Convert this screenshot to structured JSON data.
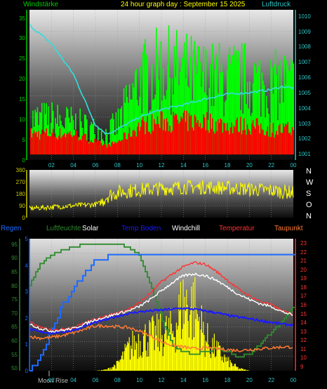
{
  "header": {
    "left_label": "Windstärke",
    "title": "24 hour graph day : September 15 2025",
    "right_label": "Luftdruck"
  },
  "wind_panel": {
    "left_axis_ticks": [
      "35",
      "30",
      "25",
      "20",
      "15",
      "10",
      "5",
      "0"
    ],
    "right_axis_ticks": [
      "1010",
      "1009",
      "1008",
      "1007",
      "1006",
      "1005",
      "1004",
      "1003",
      "1002",
      "1001"
    ],
    "x_ticks": [
      "02",
      "04",
      "06",
      "08",
      "10",
      "12",
      "14",
      "16",
      "18",
      "20",
      "22",
      "00"
    ]
  },
  "direction_panel": {
    "left_axis_ticks": [
      "360",
      "270",
      "180",
      "90",
      "0"
    ],
    "compass_labels": [
      "N",
      "W",
      "S",
      "O",
      "N"
    ]
  },
  "lower_header": {
    "regen": "Regen",
    "luftfeuchte": "Luftfeuchte",
    "solar": "Solar",
    "temp_boden": "Temp Boden",
    "windchill": "Windchill",
    "temperatur": "Temperatur",
    "taupunkt": "Taupunkt"
  },
  "lower_panel": {
    "rain_axis_ticks": [
      "5",
      "4",
      "3",
      "2",
      "1",
      "0"
    ],
    "humidity_axis_ticks": [
      "95",
      "90",
      "85",
      "80",
      "75",
      "70",
      "65",
      "60",
      "55",
      "50"
    ],
    "temp_axis_ticks": [
      "23",
      "22",
      "21",
      "20",
      "19",
      "18",
      "17",
      "16",
      "15",
      "14",
      "13",
      "12",
      "11",
      "10",
      "9"
    ],
    "x_ticks": [
      "02",
      "04",
      "06",
      "08",
      "10",
      "12",
      "14",
      "16",
      "18",
      "20",
      "22",
      "00"
    ],
    "moon_label": "Moon Rise"
  },
  "colors": {
    "wind_gust": "#00ff00",
    "wind_avg": "#ff0000",
    "pressure": "#33dddd",
    "direction": "#ffff00",
    "rain": "#1e6bff",
    "humidity": "#2e8b2e",
    "solar": "#ffff00",
    "soil_temp": "#1a1aff",
    "windchill": "#ffffff",
    "temperature": "#ff3333",
    "dewpoint": "#ff7a33"
  },
  "chart_data": [
    {
      "type": "line",
      "x": [
        0,
        2,
        4,
        6,
        7,
        8,
        10,
        12,
        14,
        16,
        18,
        20,
        22,
        23,
        24
      ],
      "xlim": [
        0,
        24
      ],
      "ylim": [
        0,
        37
      ],
      "y2lim": [
        1000.6,
        1010.4
      ],
      "series": [
        {
          "name": "Windstärke",
          "axis": "left",
          "values": [
            11,
            11,
            10,
            8,
            7,
            10,
            22,
            25,
            24,
            22,
            22,
            22,
            20,
            21,
            20
          ]
        },
        {
          "axis": "left",
          "values": [
            4,
            4,
            4,
            2,
            1,
            2,
            6,
            7,
            7,
            7,
            6,
            6,
            5,
            5,
            5
          ]
        },
        {
          "name": "Luftdruck",
          "axis": "right",
          "values": [
            1009.4,
            1008.2,
            1006.2,
            1002.9,
            1002.3,
            1002.6,
            1003.4,
            1003.9,
            1004.2,
            1004.6,
            1004.9,
            1005.0,
            1005.2,
            1005.4,
            1005.3
          ]
        }
      ]
    },
    {
      "type": "line",
      "x": [
        0,
        2,
        4,
        6,
        6.5,
        7,
        8,
        10,
        12,
        14,
        16,
        18,
        20,
        22,
        24
      ],
      "xlim": [
        0,
        24
      ],
      "ylim": [
        0,
        360
      ],
      "series": [
        {
          "values": [
            70,
            80,
            90,
            100,
            110,
            160,
            190,
            210,
            220,
            230,
            230,
            225,
            215,
            205,
            190
          ]
        }
      ]
    },
    {
      "type": "line",
      "x": [
        0,
        1,
        2,
        3,
        4,
        5,
        6,
        7,
        8,
        9,
        10,
        11,
        12,
        13,
        14,
        15,
        16,
        17,
        18,
        19,
        20,
        21,
        22,
        23,
        24
      ],
      "xlim": [
        0,
        24
      ],
      "series": [
        {
          "name": "Regen",
          "axis": "rain",
          "ylim": [
            0,
            5
          ],
          "values": [
            0,
            0.5,
            1.6,
            2.5,
            3.1,
            3.7,
            4.2,
            4.3,
            4.3,
            4.3,
            4.3,
            4.3,
            4.3,
            4.3,
            4.3,
            4.3,
            4.3,
            4.3,
            4.3,
            4.3,
            4.3,
            4.3,
            4.3,
            4.3,
            4.3
          ]
        },
        {
          "name": "Luftfeuchte",
          "axis": "humidity",
          "ylim": [
            49,
            97
          ],
          "values": [
            80,
            88,
            91,
            93,
            94,
            95,
            95,
            95,
            95,
            94,
            91,
            80,
            68,
            58,
            56,
            55,
            56,
            57,
            56,
            54,
            55,
            59,
            63,
            67,
            72
          ]
        },
        {
          "name": "Temp Boden",
          "axis": "temp",
          "ylim": [
            8.5,
            23.5
          ],
          "values": [
            13.2,
            12.9,
            12.8,
            12.9,
            13.1,
            13.6,
            14.0,
            14.3,
            14.7,
            15.0,
            15.2,
            15.3,
            15.4,
            15.5,
            15.6,
            15.5,
            15.3,
            15.1,
            14.8,
            14.6,
            14.4,
            14.2,
            14.0,
            13.8,
            13.7
          ]
        },
        {
          "name": "Windchill",
          "axis": "temp",
          "ylim": [
            8.5,
            23.5
          ],
          "values": [
            13.8,
            13.3,
            13.0,
            13.1,
            13.3,
            13.8,
            14.3,
            14.6,
            15.0,
            15.3,
            15.8,
            16.6,
            17.6,
            18.5,
            19.3,
            19.5,
            19.3,
            18.8,
            18.0,
            17.2,
            16.6,
            16.1,
            15.8,
            15.2,
            14.8
          ]
        },
        {
          "name": "Temperatur",
          "axis": "temp",
          "ylim": [
            8.5,
            23.5
          ],
          "values": [
            14.0,
            13.4,
            13.1,
            13.2,
            13.4,
            13.9,
            14.4,
            14.7,
            15.1,
            15.5,
            16.2,
            17.3,
            18.6,
            19.5,
            20.3,
            20.8,
            20.6,
            19.8,
            18.8,
            17.8,
            17.0,
            16.4,
            16.0,
            15.3,
            14.9
          ]
        },
        {
          "name": "Taupunkt",
          "axis": "temp",
          "ylim": [
            8.5,
            23.5
          ],
          "values": [
            12.4,
            12.2,
            12.3,
            12.5,
            12.8,
            13.2,
            13.6,
            13.6,
            13.5,
            13.4,
            13.0,
            12.5,
            11.8,
            11.4,
            11.2,
            11.0,
            11.1,
            11.0,
            10.9,
            10.8,
            10.9,
            11.0,
            11.1,
            11.2,
            11.2
          ]
        },
        {
          "name": "Solar",
          "axis": "solar",
          "ylim": [
            0,
            100
          ],
          "values": [
            0,
            0,
            0,
            0,
            0,
            0,
            0,
            1,
            6,
            20,
            28,
            30,
            32,
            35,
            60,
            55,
            28,
            18,
            8,
            2,
            0,
            0,
            0,
            0,
            0
          ]
        }
      ]
    }
  ]
}
